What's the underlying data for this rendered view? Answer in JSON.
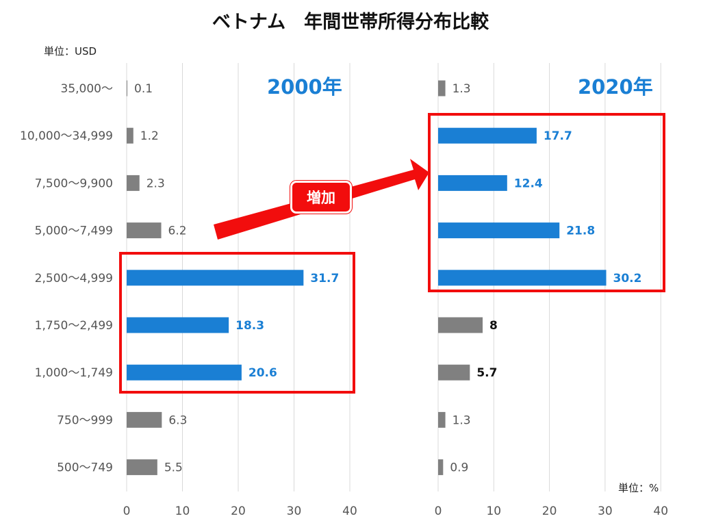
{
  "title": "ベトナム　年間世帯所得分布比較",
  "unit_left": "単位：USD",
  "unit_right": "単位：%",
  "badge": "増加",
  "colors": {
    "highlight_bar": "#1a7fd4",
    "normal_bar": "#808080",
    "highlight_box": "#f20d0d",
    "arrow": "#f20d0d",
    "grid": "#d9d9d9"
  },
  "chart_data": [
    {
      "type": "bar",
      "orientation": "horizontal",
      "title": "2000年",
      "categories": [
        "35,000～",
        "10,000～34,999",
        "7,500～9,900",
        "5,000～7,499",
        "2,500～4,999",
        "1,750～2,499",
        "1,000～1,749",
        "750～999",
        "500～749"
      ],
      "values": [
        0.1,
        1.2,
        2.3,
        6.2,
        31.7,
        18.3,
        20.6,
        6.3,
        5.5
      ],
      "highlighted": [
        false,
        false,
        false,
        false,
        true,
        true,
        true,
        false,
        false
      ],
      "xlim": [
        0,
        40
      ],
      "xticks": [
        0,
        10,
        20,
        30,
        40
      ],
      "grid": true
    },
    {
      "type": "bar",
      "orientation": "horizontal",
      "title": "2020年",
      "categories": [
        "35,000～",
        "10,000～34,999",
        "7,500～9,900",
        "5,000～7,499",
        "2,500～4,999",
        "1,750～2,499",
        "1,000～1,749",
        "750～999",
        "500～749"
      ],
      "values": [
        1.3,
        17.7,
        12.4,
        21.8,
        30.2,
        8,
        5.7,
        1.3,
        0.9
      ],
      "highlighted": [
        false,
        true,
        true,
        true,
        true,
        false,
        false,
        false,
        false
      ],
      "bold_labels": [
        false,
        true,
        true,
        true,
        true,
        true,
        true,
        false,
        false
      ],
      "xlim": [
        0,
        40
      ],
      "xticks": [
        0,
        10,
        20,
        30,
        40
      ],
      "grid": true
    }
  ]
}
